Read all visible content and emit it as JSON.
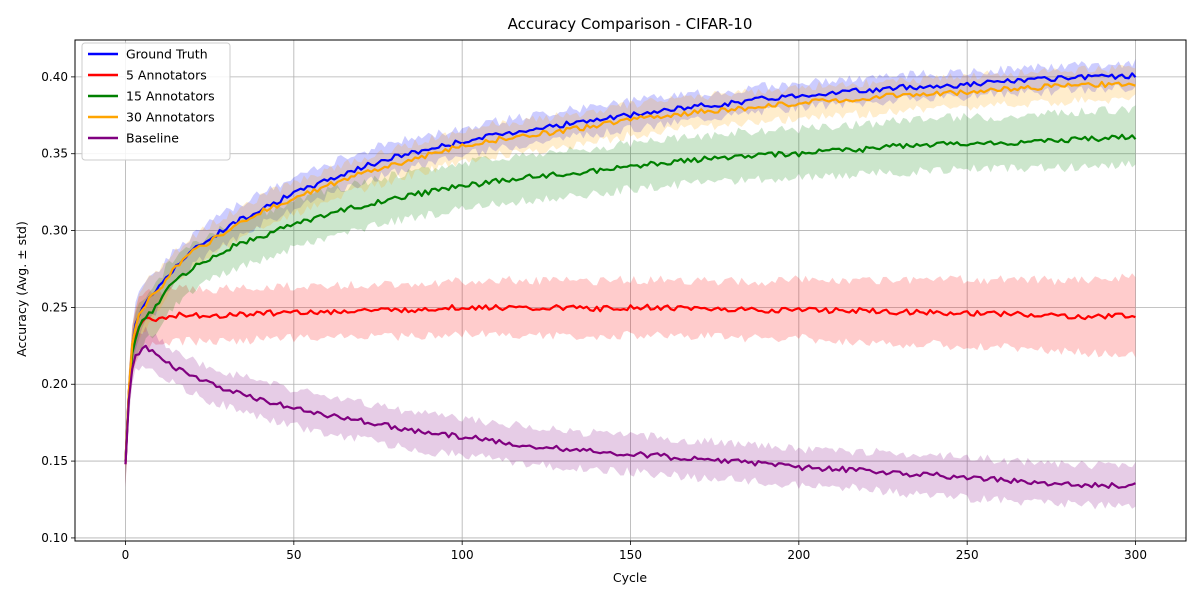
{
  "chart_data": {
    "type": "line",
    "title": "Accuracy Comparison - CIFAR-10",
    "xlabel": "Cycle",
    "ylabel": "Accuracy (Avg. ± std)",
    "xlim": [
      -15,
      315
    ],
    "ylim": [
      0.098,
      0.424
    ],
    "xticks": [
      0,
      50,
      100,
      150,
      200,
      250,
      300
    ],
    "yticks": [
      0.1,
      0.15,
      0.2,
      0.25,
      0.3,
      0.35,
      0.4
    ],
    "ytick_labels": [
      "0.10",
      "0.15",
      "0.20",
      "0.25",
      "0.30",
      "0.35",
      "0.40"
    ],
    "grid": true,
    "legend_position": "top-left",
    "band_description": "shaded band = mean ± std",
    "series": [
      {
        "name": "Ground Truth",
        "color": "#0000ff",
        "x": [
          0,
          1,
          2,
          3,
          4,
          5,
          6,
          7,
          8,
          10,
          12,
          15,
          20,
          25,
          30,
          40,
          50,
          60,
          70,
          80,
          90,
          100,
          110,
          120,
          130,
          140,
          150,
          160,
          170,
          180,
          190,
          200,
          210,
          220,
          230,
          240,
          250,
          260,
          270,
          280,
          290,
          300
        ],
        "mean": [
          0.15,
          0.195,
          0.225,
          0.238,
          0.245,
          0.25,
          0.254,
          0.257,
          0.259,
          0.263,
          0.27,
          0.277,
          0.287,
          0.295,
          0.302,
          0.314,
          0.324,
          0.333,
          0.341,
          0.348,
          0.353,
          0.358,
          0.362,
          0.366,
          0.369,
          0.372,
          0.375,
          0.378,
          0.381,
          0.383,
          0.386,
          0.388,
          0.39,
          0.391,
          0.393,
          0.394,
          0.395,
          0.397,
          0.398,
          0.399,
          0.4,
          0.401
        ],
        "std": [
          0.015,
          0.012,
          0.012,
          0.013,
          0.013,
          0.014,
          0.015,
          0.015,
          0.015,
          0.012,
          0.011,
          0.01,
          0.01,
          0.01,
          0.01,
          0.01,
          0.01,
          0.01,
          0.01,
          0.01,
          0.009,
          0.009,
          0.009,
          0.009,
          0.009,
          0.009,
          0.009,
          0.009,
          0.008,
          0.008,
          0.008,
          0.008,
          0.008,
          0.008,
          0.008,
          0.008,
          0.008,
          0.008,
          0.008,
          0.008,
          0.008,
          0.008
        ]
      },
      {
        "name": "5 Annotators",
        "color": "#ff0000",
        "x": [
          0,
          1,
          2,
          3,
          4,
          5,
          6,
          7,
          8,
          10,
          12,
          15,
          20,
          25,
          30,
          40,
          50,
          60,
          70,
          80,
          90,
          100,
          110,
          120,
          130,
          140,
          150,
          160,
          170,
          180,
          190,
          200,
          210,
          220,
          230,
          240,
          250,
          260,
          270,
          280,
          290,
          300
        ],
        "mean": [
          0.148,
          0.195,
          0.222,
          0.232,
          0.237,
          0.24,
          0.242,
          0.243,
          0.243,
          0.242,
          0.244,
          0.245,
          0.245,
          0.245,
          0.245,
          0.246,
          0.247,
          0.247,
          0.248,
          0.248,
          0.249,
          0.25,
          0.25,
          0.249,
          0.25,
          0.249,
          0.25,
          0.25,
          0.249,
          0.249,
          0.248,
          0.249,
          0.248,
          0.248,
          0.247,
          0.247,
          0.246,
          0.246,
          0.245,
          0.244,
          0.244,
          0.245
        ],
        "std": [
          0.015,
          0.014,
          0.016,
          0.017,
          0.018,
          0.018,
          0.018,
          0.018,
          0.018,
          0.017,
          0.017,
          0.017,
          0.017,
          0.017,
          0.017,
          0.017,
          0.017,
          0.017,
          0.017,
          0.017,
          0.017,
          0.017,
          0.018,
          0.018,
          0.018,
          0.018,
          0.018,
          0.018,
          0.018,
          0.018,
          0.019,
          0.019,
          0.02,
          0.02,
          0.021,
          0.021,
          0.022,
          0.022,
          0.023,
          0.023,
          0.024,
          0.025
        ]
      },
      {
        "name": "15 Annotators",
        "color": "#008000",
        "x": [
          0,
          1,
          2,
          3,
          4,
          5,
          6,
          7,
          8,
          10,
          12,
          15,
          20,
          25,
          30,
          40,
          50,
          60,
          70,
          80,
          90,
          100,
          110,
          120,
          130,
          140,
          150,
          160,
          170,
          180,
          190,
          200,
          210,
          220,
          230,
          240,
          250,
          260,
          270,
          280,
          290,
          300
        ],
        "mean": [
          0.15,
          0.193,
          0.22,
          0.23,
          0.236,
          0.24,
          0.243,
          0.246,
          0.248,
          0.252,
          0.26,
          0.268,
          0.276,
          0.282,
          0.288,
          0.296,
          0.304,
          0.311,
          0.316,
          0.321,
          0.325,
          0.329,
          0.332,
          0.335,
          0.337,
          0.339,
          0.342,
          0.344,
          0.346,
          0.348,
          0.349,
          0.35,
          0.352,
          0.353,
          0.355,
          0.356,
          0.357,
          0.357,
          0.358,
          0.359,
          0.36,
          0.361
        ],
        "std": [
          0.015,
          0.012,
          0.013,
          0.014,
          0.015,
          0.015,
          0.016,
          0.016,
          0.016,
          0.016,
          0.016,
          0.016,
          0.015,
          0.015,
          0.015,
          0.015,
          0.015,
          0.015,
          0.015,
          0.015,
          0.015,
          0.015,
          0.015,
          0.015,
          0.015,
          0.015,
          0.015,
          0.015,
          0.015,
          0.016,
          0.016,
          0.016,
          0.016,
          0.016,
          0.017,
          0.017,
          0.017,
          0.017,
          0.017,
          0.018,
          0.018,
          0.018
        ]
      },
      {
        "name": "30 Annotators",
        "color": "#ffa500",
        "x": [
          0,
          1,
          2,
          3,
          4,
          5,
          6,
          7,
          8,
          10,
          12,
          15,
          20,
          25,
          30,
          40,
          50,
          60,
          70,
          80,
          90,
          100,
          110,
          120,
          130,
          140,
          150,
          160,
          170,
          180,
          190,
          200,
          210,
          220,
          230,
          240,
          250,
          260,
          270,
          280,
          290,
          300
        ],
        "mean": [
          0.15,
          0.196,
          0.226,
          0.237,
          0.244,
          0.249,
          0.252,
          0.255,
          0.257,
          0.261,
          0.268,
          0.276,
          0.286,
          0.293,
          0.3,
          0.312,
          0.321,
          0.329,
          0.337,
          0.343,
          0.349,
          0.355,
          0.359,
          0.362,
          0.365,
          0.368,
          0.372,
          0.375,
          0.377,
          0.379,
          0.381,
          0.383,
          0.385,
          0.386,
          0.388,
          0.389,
          0.39,
          0.392,
          0.393,
          0.394,
          0.395,
          0.396
        ],
        "std": [
          0.015,
          0.012,
          0.012,
          0.013,
          0.013,
          0.014,
          0.015,
          0.015,
          0.015,
          0.012,
          0.011,
          0.01,
          0.01,
          0.01,
          0.01,
          0.01,
          0.01,
          0.01,
          0.01,
          0.01,
          0.01,
          0.01,
          0.01,
          0.01,
          0.01,
          0.01,
          0.01,
          0.01,
          0.01,
          0.01,
          0.01,
          0.01,
          0.01,
          0.01,
          0.01,
          0.01,
          0.01,
          0.01,
          0.01,
          0.01,
          0.01,
          0.01
        ]
      },
      {
        "name": "Baseline",
        "color": "#800080",
        "x": [
          0,
          1,
          2,
          3,
          4,
          5,
          6,
          7,
          8,
          10,
          12,
          15,
          20,
          25,
          30,
          40,
          50,
          60,
          70,
          80,
          90,
          100,
          110,
          120,
          130,
          140,
          150,
          160,
          170,
          180,
          190,
          200,
          210,
          220,
          230,
          240,
          250,
          260,
          270,
          280,
          290,
          300
        ],
        "mean": [
          0.148,
          0.19,
          0.21,
          0.218,
          0.221,
          0.223,
          0.224,
          0.223,
          0.221,
          0.218,
          0.215,
          0.21,
          0.205,
          0.2,
          0.197,
          0.19,
          0.185,
          0.18,
          0.176,
          0.172,
          0.168,
          0.166,
          0.163,
          0.16,
          0.158,
          0.156,
          0.155,
          0.153,
          0.151,
          0.15,
          0.148,
          0.146,
          0.145,
          0.144,
          0.142,
          0.141,
          0.139,
          0.138,
          0.136,
          0.135,
          0.134,
          0.134
        ],
        "std": [
          0.015,
          0.012,
          0.01,
          0.01,
          0.011,
          0.011,
          0.011,
          0.011,
          0.011,
          0.011,
          0.011,
          0.011,
          0.011,
          0.011,
          0.011,
          0.012,
          0.012,
          0.012,
          0.012,
          0.012,
          0.012,
          0.012,
          0.012,
          0.012,
          0.012,
          0.012,
          0.012,
          0.012,
          0.012,
          0.012,
          0.012,
          0.012,
          0.012,
          0.012,
          0.013,
          0.013,
          0.013,
          0.013,
          0.013,
          0.013,
          0.013,
          0.013
        ]
      }
    ]
  }
}
